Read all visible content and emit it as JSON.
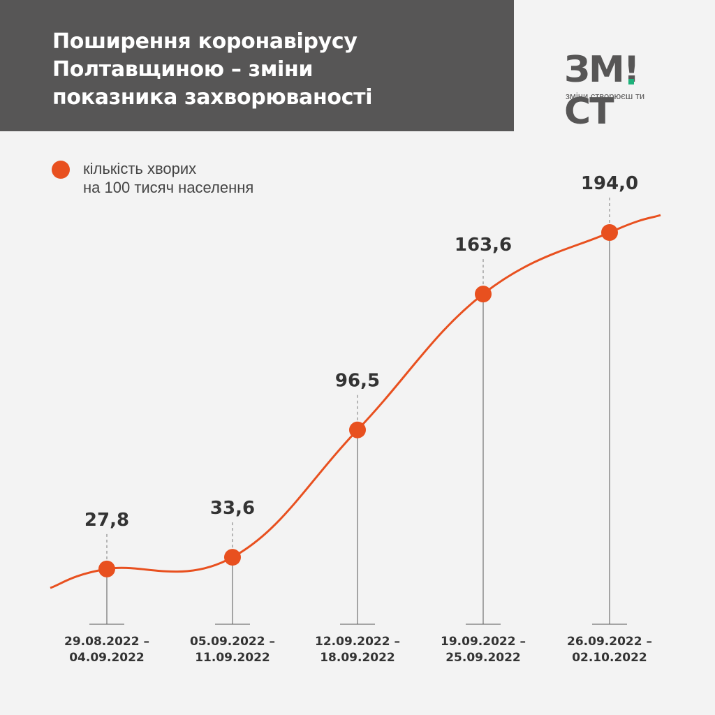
{
  "header": {
    "title_lines": [
      "Поширення коронавірусу",
      "Полтавщиною – зміни",
      "показника захворюваності"
    ]
  },
  "logo": {
    "part1": "ЗМ",
    "part2": "СТ",
    "tagline": "зміни створюєш ти"
  },
  "legend": {
    "lines": [
      "кількість хворих",
      "на 100 тисяч населення"
    ]
  },
  "colors": {
    "accent": "#e8501f",
    "header_bg": "#575656",
    "background": "#f3f3f3",
    "logo_green": "#1db17a",
    "text": "#333333"
  },
  "chart_data": {
    "type": "line",
    "categories": [
      [
        "29.08.2022 –",
        "04.09.2022"
      ],
      [
        "05.09.2022 –",
        "11.09.2022"
      ],
      [
        "12.09.2022 –",
        "18.09.2022"
      ],
      [
        "19.09.2022 –",
        "25.09.2022"
      ],
      [
        "26.09.2022 –",
        "02.10.2022"
      ]
    ],
    "values": [
      27.8,
      33.6,
      96.5,
      163.6,
      194.0
    ],
    "value_labels": [
      "27,8",
      "33,6",
      "96,5",
      "163,6",
      "194,0"
    ],
    "series_name": "кількість хворих на 100 тисяч населення",
    "ylim": [
      0,
      194.0
    ],
    "grid": false,
    "legend_position": "top-left"
  }
}
